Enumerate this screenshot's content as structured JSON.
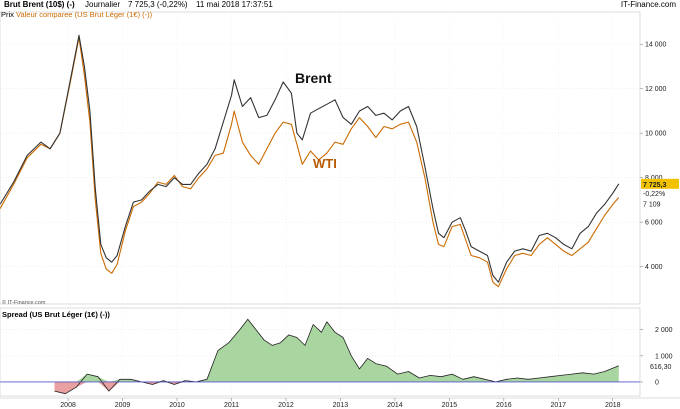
{
  "header": {
    "instrument": "Brut Brent (10$) (-)",
    "period": "Journalier",
    "quote": "7 725,3 (-0,22%)",
    "datetime": "11 mai 2018 17:37:51",
    "brand": "IT-Finance.com"
  },
  "subheader": {
    "price_label": "Prix",
    "compare_label": "Valeur comparee (US Brut Léger (1€) (-))"
  },
  "copyright": "© IT-Finance.com",
  "spread_title": "Spread (US Brut Léger (1€) (-))",
  "annotations": {
    "brent": "Brent",
    "wti": "WTI"
  },
  "price_badges": {
    "last": "7 725,3",
    "change": "-0,22%",
    "compare": "7 109",
    "spread": "616,30"
  },
  "colors": {
    "brent": "#333333",
    "wti": "#cc6a00",
    "spread_positive": "#a8d5a0",
    "spread_negative": "#e8a0a0",
    "badge_last": "#f2c200",
    "zero_line": "#5555cc"
  },
  "chart_data": [
    {
      "type": "line",
      "title": "Brut Brent (10$) (-)",
      "x_ticks": [
        "2008",
        "2009",
        "2010",
        "2011",
        "2012",
        "2013",
        "2014",
        "2015",
        "2016",
        "2017",
        "2018"
      ],
      "y_ticks": [
        "4 000",
        "6 000",
        "8 000",
        "10 000",
        "12 000",
        "14 000"
      ],
      "ylim": [
        2500,
        15000
      ],
      "series": [
        {
          "name": "Brent",
          "x": [
            2007.0,
            2007.25,
            2007.5,
            2007.75,
            2007.92,
            2008.1,
            2008.3,
            2008.45,
            2008.55,
            2008.65,
            2008.75,
            2008.85,
            2008.95,
            2009.05,
            2009.15,
            2009.3,
            2009.45,
            2009.6,
            2009.75,
            2009.9,
            2010.05,
            2010.2,
            2010.35,
            2010.5,
            2010.65,
            2010.8,
            2010.95,
            2011.1,
            2011.25,
            2011.3,
            2011.45,
            2011.6,
            2011.75,
            2011.9,
            2012.05,
            2012.2,
            2012.35,
            2012.45,
            2012.55,
            2012.7,
            2012.85,
            2013.0,
            2013.15,
            2013.3,
            2013.45,
            2013.6,
            2013.75,
            2013.9,
            2014.05,
            2014.2,
            2014.35,
            2014.5,
            2014.65,
            2014.8,
            2014.95,
            2015.05,
            2015.15,
            2015.3,
            2015.45,
            2015.55,
            2015.65,
            2015.8,
            2015.95,
            2016.05,
            2016.15,
            2016.3,
            2016.45,
            2016.6,
            2016.75,
            2016.9,
            2017.05,
            2017.2,
            2017.35,
            2017.5,
            2017.65,
            2017.8,
            2017.95,
            2018.1,
            2018.25,
            2018.36
          ],
          "values": [
            6800,
            7800,
            9000,
            9600,
            9300,
            10000,
            12500,
            14400,
            13000,
            11000,
            7500,
            5000,
            4400,
            4200,
            4500,
            5800,
            6900,
            7000,
            7400,
            7700,
            7600,
            8000,
            7700,
            7700,
            8200,
            8600,
            9300,
            10500,
            11700,
            12400,
            11200,
            11600,
            10700,
            10800,
            11500,
            12300,
            11800,
            10000,
            9700,
            10900,
            11100,
            11300,
            11500,
            10700,
            10400,
            11000,
            11200,
            10800,
            10900,
            10600,
            11000,
            11200,
            10300,
            8500,
            6600,
            5500,
            5300,
            6000,
            6200,
            5600,
            4900,
            4700,
            4500,
            3600,
            3300,
            4200,
            4700,
            4800,
            4700,
            5400,
            5500,
            5300,
            5000,
            4800,
            5500,
            5800,
            6400,
            6800,
            7300,
            7725
          ]
        },
        {
          "name": "WTI",
          "x": [
            2007.0,
            2007.25,
            2007.5,
            2007.75,
            2007.92,
            2008.1,
            2008.3,
            2008.45,
            2008.55,
            2008.65,
            2008.75,
            2008.85,
            2008.95,
            2009.05,
            2009.15,
            2009.3,
            2009.45,
            2009.6,
            2009.75,
            2009.9,
            2010.05,
            2010.2,
            2010.35,
            2010.5,
            2010.65,
            2010.8,
            2010.95,
            2011.1,
            2011.25,
            2011.3,
            2011.45,
            2011.6,
            2011.75,
            2011.9,
            2012.05,
            2012.2,
            2012.35,
            2012.45,
            2012.55,
            2012.7,
            2012.85,
            2013.0,
            2013.15,
            2013.3,
            2013.45,
            2013.6,
            2013.75,
            2013.9,
            2014.05,
            2014.2,
            2014.35,
            2014.5,
            2014.65,
            2014.8,
            2014.95,
            2015.05,
            2015.15,
            2015.3,
            2015.45,
            2015.55,
            2015.65,
            2015.8,
            2015.95,
            2016.05,
            2016.15,
            2016.3,
            2016.45,
            2016.6,
            2016.75,
            2016.9,
            2017.05,
            2017.2,
            2017.35,
            2017.5,
            2017.65,
            2017.8,
            2017.95,
            2018.1,
            2018.25,
            2018.36
          ],
          "values": [
            6600,
            7700,
            8900,
            9500,
            9300,
            10000,
            12400,
            14300,
            12600,
            10500,
            7000,
            4600,
            3900,
            3700,
            4100,
            5600,
            6700,
            6900,
            7300,
            7800,
            7700,
            8100,
            7600,
            7500,
            8000,
            8400,
            9000,
            9100,
            10400,
            11000,
            9600,
            9000,
            8600,
            9300,
            10000,
            10500,
            10400,
            9500,
            8600,
            9200,
            8800,
            9100,
            9600,
            9500,
            10200,
            10700,
            10300,
            9800,
            10300,
            10200,
            10400,
            10500,
            9600,
            8000,
            6000,
            5000,
            4900,
            5800,
            5900,
            5200,
            4500,
            4400,
            4200,
            3300,
            3100,
            3900,
            4500,
            4600,
            4500,
            5000,
            5300,
            5000,
            4700,
            4500,
            4800,
            5100,
            5700,
            6300,
            6800,
            7109
          ]
        }
      ]
    },
    {
      "type": "area",
      "title": "Spread (US Brut Léger (1€) (-))",
      "y_ticks": [
        "0",
        "1 000",
        "2 000"
      ],
      "ylim": [
        -500,
        2600
      ],
      "series": [
        {
          "name": "Spread",
          "x": [
            2008.0,
            2008.2,
            2008.4,
            2008.6,
            2008.8,
            2009.0,
            2009.2,
            2009.4,
            2009.6,
            2009.8,
            2010.0,
            2010.2,
            2010.4,
            2010.6,
            2010.8,
            2011.0,
            2011.2,
            2011.4,
            2011.55,
            2011.7,
            2011.85,
            2012.0,
            2012.15,
            2012.3,
            2012.45,
            2012.6,
            2012.75,
            2012.9,
            2013.0,
            2013.15,
            2013.3,
            2013.45,
            2013.6,
            2013.75,
            2013.9,
            2014.1,
            2014.3,
            2014.5,
            2014.7,
            2014.9,
            2015.1,
            2015.3,
            2015.5,
            2015.7,
            2015.9,
            2016.1,
            2016.3,
            2016.5,
            2016.7,
            2016.9,
            2017.1,
            2017.3,
            2017.5,
            2017.7,
            2017.9,
            2018.1,
            2018.36
          ],
          "values": [
            -350,
            -450,
            -200,
            300,
            200,
            -350,
            100,
            100,
            0,
            -100,
            50,
            -100,
            50,
            0,
            100,
            1200,
            1500,
            2000,
            2400,
            2000,
            1600,
            1400,
            1500,
            1800,
            1700,
            1400,
            2200,
            1900,
            2300,
            1900,
            1700,
            1000,
            500,
            900,
            700,
            600,
            300,
            400,
            150,
            250,
            200,
            300,
            100,
            200,
            100,
            0,
            100,
            150,
            100,
            150,
            200,
            250,
            300,
            350,
            300,
            400,
            616
          ]
        }
      ]
    }
  ]
}
